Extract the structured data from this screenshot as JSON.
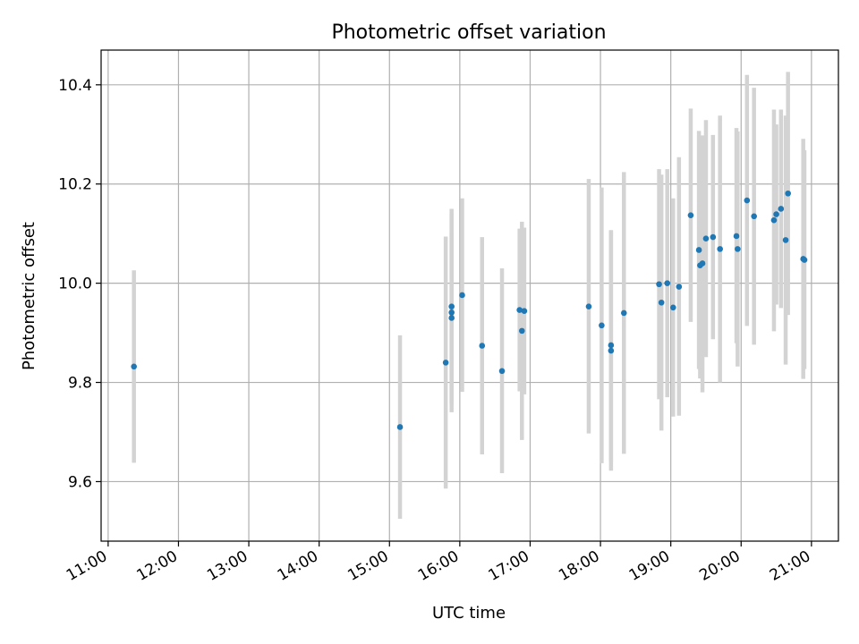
{
  "chart_data": {
    "type": "scatter",
    "title": "Photometric offset variation",
    "xlabel": "UTC time",
    "ylabel": "Photometric offset",
    "grid": true,
    "xlim": [
      "10:54",
      "21:23"
    ],
    "ylim": [
      9.48,
      10.47
    ],
    "xticks": [
      "11:00",
      "12:00",
      "13:00",
      "14:00",
      "15:00",
      "16:00",
      "17:00",
      "18:00",
      "19:00",
      "20:00",
      "21:00"
    ],
    "yticks": [
      9.6,
      9.8,
      10.0,
      10.2,
      10.4
    ],
    "colors": {
      "points": "#1f77b4",
      "errorbars": "#d3d3d3",
      "grid": "#b0b0b0"
    },
    "series": [
      {
        "points": [
          {
            "x": "11:22",
            "y": 9.832,
            "lo": 9.638,
            "hi": 10.026
          },
          {
            "x": "15:09",
            "y": 9.71,
            "lo": 9.525,
            "hi": 9.895
          },
          {
            "x": "15:48",
            "y": 9.84,
            "lo": 9.586,
            "hi": 10.094
          },
          {
            "x": "15:53",
            "y": 9.953,
            "lo": 9.756,
            "hi": 10.15
          },
          {
            "x": "15:53",
            "y": 9.941,
            "lo": 9.74,
            "hi": 10.14
          },
          {
            "x": "15:53",
            "y": 9.93,
            "lo": 9.76,
            "hi": 10.1
          },
          {
            "x": "16:02",
            "y": 9.976,
            "lo": 9.781,
            "hi": 10.171
          },
          {
            "x": "16:19",
            "y": 9.874,
            "lo": 9.655,
            "hi": 10.093
          },
          {
            "x": "16:36",
            "y": 9.823,
            "lo": 9.617,
            "hi": 10.03
          },
          {
            "x": "16:51",
            "y": 9.946,
            "lo": 9.782,
            "hi": 10.11
          },
          {
            "x": "16:53",
            "y": 9.904,
            "lo": 9.684,
            "hi": 10.124
          },
          {
            "x": "16:55",
            "y": 9.944,
            "lo": 9.776,
            "hi": 10.112
          },
          {
            "x": "17:50",
            "y": 9.953,
            "lo": 9.697,
            "hi": 10.21
          },
          {
            "x": "18:01",
            "y": 9.915,
            "lo": 9.637,
            "hi": 10.193
          },
          {
            "x": "18:09",
            "y": 9.875,
            "lo": 9.64,
            "hi": 10.107
          },
          {
            "x": "18:09",
            "y": 9.864,
            "lo": 9.622,
            "hi": 10.106
          },
          {
            "x": "18:20",
            "y": 9.94,
            "lo": 9.656,
            "hi": 10.224
          },
          {
            "x": "18:50",
            "y": 9.998,
            "lo": 9.766,
            "hi": 10.23
          },
          {
            "x": "18:52",
            "y": 9.961,
            "lo": 9.703,
            "hi": 10.219
          },
          {
            "x": "18:57",
            "y": 10.0,
            "lo": 9.77,
            "hi": 10.23
          },
          {
            "x": "19:02",
            "y": 9.951,
            "lo": 9.731,
            "hi": 10.171
          },
          {
            "x": "19:07",
            "y": 9.993,
            "lo": 9.733,
            "hi": 10.254
          },
          {
            "x": "19:17",
            "y": 10.137,
            "lo": 9.922,
            "hi": 10.352
          },
          {
            "x": "19:24",
            "y": 10.067,
            "lo": 9.827,
            "hi": 10.307
          },
          {
            "x": "19:25",
            "y": 10.036,
            "lo": 9.808,
            "hi": 10.264
          },
          {
            "x": "19:27",
            "y": 10.04,
            "lo": 9.78,
            "hi": 10.298
          },
          {
            "x": "19:30",
            "y": 10.09,
            "lo": 9.851,
            "hi": 10.329
          },
          {
            "x": "19:36",
            "y": 10.093,
            "lo": 9.887,
            "hi": 10.299
          },
          {
            "x": "19:42",
            "y": 10.069,
            "lo": 9.8,
            "hi": 10.338
          },
          {
            "x": "19:56",
            "y": 10.095,
            "lo": 9.879,
            "hi": 10.313
          },
          {
            "x": "19:57",
            "y": 10.069,
            "lo": 9.832,
            "hi": 10.306
          },
          {
            "x": "20:05",
            "y": 10.167,
            "lo": 9.914,
            "hi": 10.42
          },
          {
            "x": "20:11",
            "y": 10.135,
            "lo": 9.876,
            "hi": 10.394
          },
          {
            "x": "20:28",
            "y": 10.127,
            "lo": 9.903,
            "hi": 10.35
          },
          {
            "x": "20:30",
            "y": 10.139,
            "lo": 9.957,
            "hi": 10.32
          },
          {
            "x": "20:34",
            "y": 10.15,
            "lo": 9.95,
            "hi": 10.35
          },
          {
            "x": "20:38",
            "y": 10.087,
            "lo": 9.836,
            "hi": 10.338
          },
          {
            "x": "20:40",
            "y": 10.181,
            "lo": 9.936,
            "hi": 10.426
          },
          {
            "x": "20:53",
            "y": 10.049,
            "lo": 9.807,
            "hi": 10.291
          },
          {
            "x": "20:54",
            "y": 10.047,
            "lo": 9.827,
            "hi": 10.268
          }
        ]
      }
    ]
  }
}
